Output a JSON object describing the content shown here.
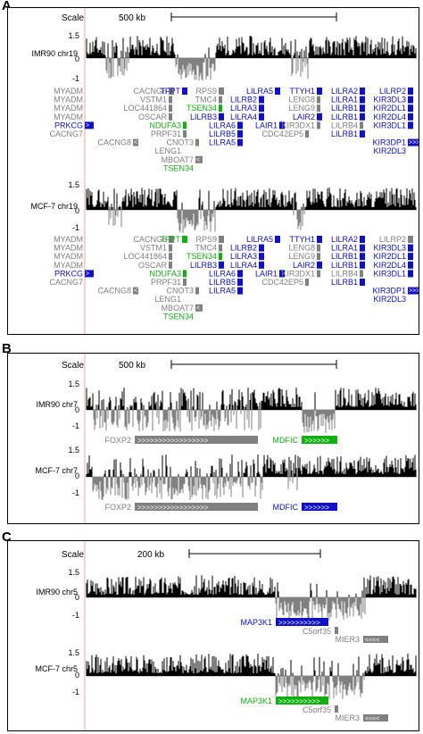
{
  "panels": [
    {
      "letter": "A",
      "scale_label": "Scale",
      "scale_value": "500 kb",
      "track_names": [
        "IMR90 chr19",
        "MCF-7 chr19"
      ],
      "axis_labels": [
        "1.5",
        "0",
        "-1",
        "1.5",
        "0",
        "-1"
      ],
      "genes_track1": [
        "MYADM",
        "CACNG6",
        "TFPT",
        "RPS9",
        "LILRA5",
        "TTYH1",
        "LILRA2",
        "LILRP2",
        "MYADM",
        "VSTM1",
        "TMC4",
        "LILRB2",
        "LENG8",
        "LILRA1",
        "KIR3DL3",
        "MYADM",
        "LOC441864",
        "TSEN34",
        "LILRA3",
        "LENG9",
        "LILRB1",
        "KIR2DL1",
        "MYADM",
        "OSCAR",
        "LILRB3",
        "LILRA4",
        "LAIR2",
        "LILRB1",
        "KIR2DL4",
        "PRKCG",
        "NDUFA3",
        "LILRA6",
        "LAIR1",
        "KIR3DX1",
        "LILRB4",
        "KIR3DL1",
        "CACNG7",
        "PRPF31",
        "LILRB5",
        "CDC42EP5",
        "LILRB1",
        "CACNG8",
        "CNOT3",
        "LILRA5",
        "KIR3DP1",
        "LENG1",
        "KIR2DL3",
        "MBOAT7",
        "TSEN34"
      ],
      "genes_track2": [
        "MYADM",
        "CACNG6",
        "TFPT",
        "RPS9",
        "LILRA5",
        "TTYH1",
        "LILRA2",
        "LILRP2",
        "MYADM",
        "VSTM1",
        "TMC4",
        "LILRB2",
        "LENG8",
        "LILRA1",
        "KIR3DL3",
        "MYADM",
        "LOC441864",
        "TSEN34",
        "LILRA3",
        "LENG9",
        "LILRB1",
        "KIR2DL1",
        "MYADM",
        "OSCAR",
        "LILRB3",
        "LILRA4",
        "LAIR2",
        "LILRB1",
        "KIR2DL4",
        "PRKCG",
        "NDUFA3",
        "LILRA6",
        "LAIR1",
        "KIR3DX1",
        "LILRB4",
        "KIR3DL1",
        "CACNG7",
        "PRPF31",
        "LILRB5",
        "CDC42EP5",
        "LILRB1",
        "CACNG8",
        "CNOT3",
        "LILRA5",
        "KIR3DP1",
        "LENG1",
        "KIR2DL3",
        "MBOAT7",
        "TSEN34"
      ]
    },
    {
      "letter": "B",
      "scale_label": "Scale",
      "scale_value": "500 kb",
      "track_names": [
        "IMR90 chr7",
        "MCF-7 chr7"
      ],
      "axis_labels": [
        "1.5",
        "0",
        "-1",
        "1.5",
        "0",
        "-1"
      ],
      "genes_track1": [
        "FOXP2",
        "MDFIC"
      ],
      "genes_track2": [
        "FOXP2",
        "MDFIC"
      ]
    },
    {
      "letter": "C",
      "scale_label": "Scale",
      "scale_value": "200 kb",
      "track_names": [
        "IMR90 chr5",
        "MCF-7 chr5"
      ],
      "axis_labels": [
        "1.5",
        "0",
        "-1",
        "1.5",
        "0",
        "-1"
      ],
      "genes_track1": [
        "MAP3K1",
        "C5orf35",
        "MIER3"
      ],
      "genes_track2": [
        "MAP3K1",
        "C5orf35",
        "MIER3"
      ]
    }
  ],
  "colors": {
    "black": "#000000",
    "gray": "#808080",
    "blue": "#1010c8",
    "green": "#10b010",
    "pink": "#f4a0a0"
  }
}
